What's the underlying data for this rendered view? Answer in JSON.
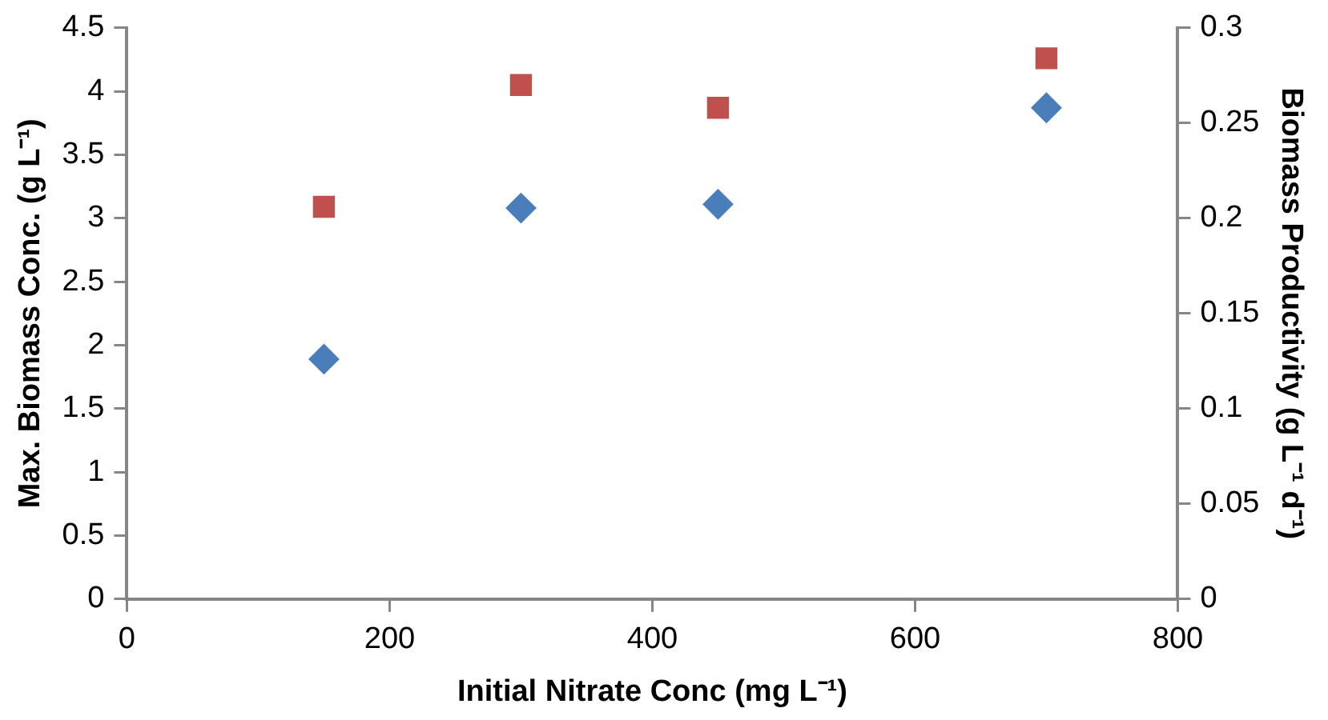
{
  "chart_data": {
    "type": "scatter",
    "xlabel": "Initial Nitrate Conc (mg L⁻¹)",
    "ylabel": "Max. Biomass Conc. (g L⁻¹)",
    "y2label": "Biomass Productivity (g L⁻¹ d⁻¹)",
    "x": [
      150,
      300,
      450,
      700
    ],
    "series": [
      {
        "color": "#4a7ebb",
        "marker": "diamond",
        "values": [
          1.89,
          3.08,
          3.11,
          3.87
        ]
      },
      {
        "color": "#c0504d",
        "marker": "square",
        "axis": "y2",
        "values": [
          0.206,
          0.27,
          0.258,
          0.284
        ]
      }
    ],
    "xlim": [
      0,
      800
    ],
    "xticks": [
      0,
      200,
      400,
      600,
      800
    ],
    "ylim": [
      0,
      4.5
    ],
    "yticks": [
      0,
      0.5,
      1,
      1.5,
      2,
      2.5,
      3,
      3.5,
      4,
      4.5
    ],
    "y2lim": [
      0,
      0.3
    ],
    "y2ticks": [
      0,
      0.05,
      0.1,
      0.15,
      0.2,
      0.25,
      0.3
    ],
    "grid": false,
    "legend": false
  }
}
